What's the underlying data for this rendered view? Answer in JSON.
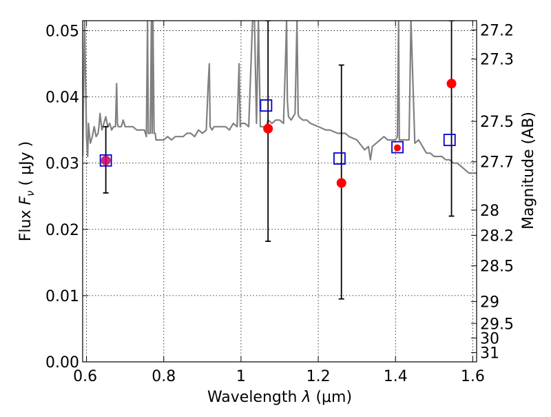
{
  "chart_data": {
    "type": "scatter",
    "title": "",
    "xlabel_prefix": "Wavelength",
    "xlabel_symbol": "λ",
    "xlabel_unit": "(μm)",
    "ylabel_prefix": "Flux",
    "ylabel_symbol": "F",
    "ylabel_subscript": "ν",
    "ylabel_unit": "( μJy )",
    "y2label": "Magnitude (AB)",
    "xlim": [
      0.59,
      1.61
    ],
    "ylim": [
      0.0,
      0.0515
    ],
    "grid": true,
    "x_ticks": [
      {
        "value": 0.6,
        "label": ""
      },
      {
        "value": 0.8,
        "label": "0.8"
      },
      {
        "value": 1.0,
        "label": "1"
      },
      {
        "value": 1.2,
        "label": "1.2"
      },
      {
        "value": 1.4,
        "label": "1.4"
      },
      {
        "value": 1.6,
        "label": "1.6"
      }
    ],
    "x_edge_label": "0.6",
    "y_ticks": [
      {
        "value": 0.0,
        "label": "0.00"
      },
      {
        "value": 0.01,
        "label": "0.01"
      },
      {
        "value": 0.02,
        "label": "0.02"
      },
      {
        "value": 0.03,
        "label": "0.03"
      },
      {
        "value": 0.04,
        "label": "0.04"
      },
      {
        "value": 0.05,
        "label": "0.05"
      }
    ],
    "y2_ticks": [
      {
        "flux": 0.0501,
        "label": "27.2"
      },
      {
        "flux": 0.0457,
        "label": "27.3"
      },
      {
        "flux": 0.0363,
        "label": "27.5"
      },
      {
        "flux": 0.0302,
        "label": "27.7"
      },
      {
        "flux": 0.0229,
        "label": "28"
      },
      {
        "flux": 0.0191,
        "label": "28.2"
      },
      {
        "flux": 0.0145,
        "label": "28.5"
      },
      {
        "flux": 0.0091,
        "label": "29"
      },
      {
        "flux": 0.0058,
        "label": "29.5"
      },
      {
        "flux": 0.0036,
        "label": "30"
      },
      {
        "flux": 0.0014,
        "label": "31"
      }
    ],
    "series": [
      {
        "kind": "spectrum_line",
        "color": "#808080",
        "x": [
          0.59,
          0.595,
          0.6,
          0.603,
          0.605,
          0.608,
          0.61,
          0.615,
          0.62,
          0.625,
          0.63,
          0.632,
          0.635,
          0.64,
          0.645,
          0.65,
          0.655,
          0.66,
          0.665,
          0.67,
          0.675,
          0.678,
          0.68,
          0.682,
          0.685,
          0.69,
          0.695,
          0.7,
          0.71,
          0.72,
          0.73,
          0.74,
          0.75,
          0.755,
          0.758,
          0.76,
          0.765,
          0.768,
          0.77,
          0.772,
          0.775,
          0.778,
          0.78,
          0.782,
          0.785,
          0.79,
          0.8,
          0.81,
          0.82,
          0.83,
          0.84,
          0.85,
          0.86,
          0.87,
          0.88,
          0.89,
          0.9,
          0.91,
          0.915,
          0.918,
          0.92,
          0.925,
          0.93,
          0.94,
          0.95,
          0.96,
          0.97,
          0.98,
          0.99,
          0.995,
          0.998,
          1.0,
          1.01,
          1.02,
          1.03,
          1.035,
          1.04,
          1.045,
          1.05,
          1.06,
          1.065,
          1.07,
          1.08,
          1.09,
          1.1,
          1.11,
          1.115,
          1.118,
          1.12,
          1.123,
          1.13,
          1.14,
          1.145,
          1.148,
          1.15,
          1.16,
          1.17,
          1.18,
          1.2,
          1.22,
          1.23,
          1.25,
          1.27,
          1.28,
          1.3,
          1.32,
          1.33,
          1.335,
          1.34,
          1.35,
          1.36,
          1.37,
          1.38,
          1.39,
          1.4,
          1.405,
          1.408,
          1.41,
          1.42,
          1.43,
          1.435,
          1.44,
          1.45,
          1.46,
          1.47,
          1.48,
          1.49,
          1.5,
          1.51,
          1.52,
          1.53,
          1.54,
          1.55,
          1.56,
          1.57,
          1.58,
          1.59,
          1.6,
          1.61
        ],
        "y": [
          0.031,
          0.0515,
          0.034,
          0.031,
          0.036,
          0.034,
          0.033,
          0.034,
          0.0355,
          0.034,
          0.0345,
          0.0355,
          0.0375,
          0.035,
          0.036,
          0.037,
          0.0355,
          0.036,
          0.035,
          0.0355,
          0.0355,
          0.042,
          0.036,
          0.0355,
          0.0355,
          0.0355,
          0.0365,
          0.0355,
          0.0355,
          0.0355,
          0.035,
          0.035,
          0.035,
          0.034,
          0.0515,
          0.0345,
          0.0345,
          0.0515,
          0.0345,
          0.0515,
          0.0345,
          0.0345,
          0.0335,
          0.0335,
          0.0335,
          0.0335,
          0.0335,
          0.034,
          0.0335,
          0.034,
          0.034,
          0.034,
          0.0345,
          0.0345,
          0.034,
          0.035,
          0.0345,
          0.035,
          0.042,
          0.045,
          0.0355,
          0.035,
          0.0355,
          0.0355,
          0.0355,
          0.0355,
          0.035,
          0.036,
          0.0355,
          0.045,
          0.0355,
          0.036,
          0.036,
          0.0355,
          0.0515,
          0.0515,
          0.036,
          0.0515,
          0.0355,
          0.0355,
          0.0355,
          0.0365,
          0.036,
          0.0365,
          0.0365,
          0.036,
          0.045,
          0.0515,
          0.0395,
          0.037,
          0.0365,
          0.0375,
          0.0515,
          0.0375,
          0.037,
          0.0365,
          0.0365,
          0.036,
          0.0355,
          0.035,
          0.035,
          0.0345,
          0.0345,
          0.034,
          0.0335,
          0.032,
          0.0325,
          0.0305,
          0.0325,
          0.033,
          0.0335,
          0.034,
          0.0335,
          0.0335,
          0.0335,
          0.034,
          0.0515,
          0.0335,
          0.0335,
          0.0335,
          0.0335,
          0.0515,
          0.033,
          0.0335,
          0.0325,
          0.0315,
          0.0315,
          0.031,
          0.031,
          0.031,
          0.0305,
          0.0305,
          0.03,
          0.03,
          0.0295,
          0.029,
          0.0285,
          0.0285,
          0.0285
        ]
      },
      {
        "kind": "observed_points",
        "color": "#ff0000",
        "x": [
          0.65,
          1.07,
          1.26,
          1.405,
          1.545
        ],
        "y": [
          0.0304,
          0.0352,
          0.027,
          0.0323,
          0.042
        ],
        "yerr_low": [
          0.0255,
          0.0182,
          0.0095,
          null,
          0.022
        ],
        "yerr_high": [
          0.0355,
          0.0515,
          0.0448,
          null,
          0.0515
        ]
      },
      {
        "kind": "model_points",
        "color": "#0000cc",
        "x": [
          0.65,
          1.065,
          1.255,
          1.405,
          1.54
        ],
        "y": [
          0.0304,
          0.0387,
          0.0307,
          0.0324,
          0.0335
        ]
      }
    ]
  }
}
